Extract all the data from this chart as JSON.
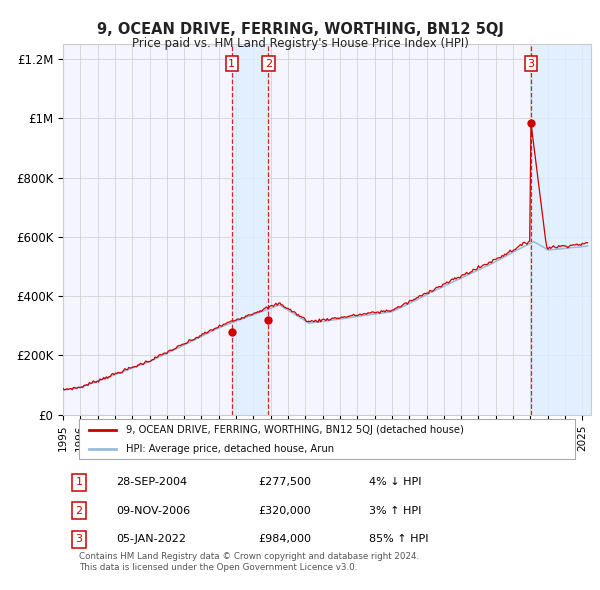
{
  "title": "9, OCEAN DRIVE, FERRING, WORTHING, BN12 5QJ",
  "subtitle": "Price paid vs. HM Land Registry's House Price Index (HPI)",
  "legend_label_red": "9, OCEAN DRIVE, FERRING, WORTHING, BN12 5QJ (detached house)",
  "legend_label_blue": "HPI: Average price, detached house, Arun",
  "transactions": [
    {
      "num": 1,
      "date": "28-SEP-2004",
      "price": 277500,
      "pct": "4%",
      "dir": "↓",
      "year": 2004.75
    },
    {
      "num": 2,
      "date": "09-NOV-2006",
      "price": 320000,
      "pct": "3%",
      "dir": "↑",
      "year": 2006.86
    },
    {
      "num": 3,
      "date": "05-JAN-2022",
      "price": 984000,
      "pct": "85%",
      "dir": "↑",
      "year": 2022.03
    }
  ],
  "footnote1": "Contains HM Land Registry data © Crown copyright and database right 2024.",
  "footnote2": "This data is licensed under the Open Government Licence v3.0.",
  "xlim": [
    1995,
    2025.5
  ],
  "ylim": [
    0,
    1250000
  ],
  "yticks": [
    0,
    200000,
    400000,
    600000,
    800000,
    1000000,
    1200000
  ],
  "ytick_labels": [
    "£0",
    "£200K",
    "£400K",
    "£600K",
    "£800K",
    "£1M",
    "£1.2M"
  ],
  "color_red": "#cc0000",
  "color_blue_line": "#99bbdd",
  "bg_color": "#f5f5ff",
  "grid_color": "#cccccc",
  "shade_color": "#ddeeff",
  "dashed_color": "#cc0000"
}
